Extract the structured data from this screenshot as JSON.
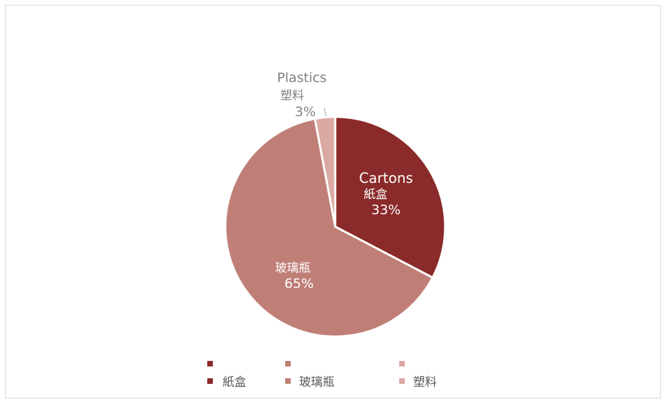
{
  "chart_data": {
    "type": "pie",
    "title": "",
    "slices": [
      {
        "label_en": "Cartons",
        "label_zh": "紙盒",
        "percent_text": "33%",
        "value": 33,
        "color": "#8b2a2a"
      },
      {
        "label_en": "",
        "label_zh": "玻璃瓶",
        "percent_text": "65%",
        "value": 65,
        "color": "#bf7f77"
      },
      {
        "label_en": "Plastics",
        "label_zh": "塑料",
        "percent_text": "3%",
        "value": 3,
        "color": "#dba9a3"
      }
    ],
    "legend": {
      "placement": "bottom",
      "rows": [
        {
          "items": [
            "",
            "",
            ""
          ]
        },
        {
          "items": [
            "紙盒",
            "玻璃瓶",
            "塑料"
          ]
        }
      ]
    },
    "label_colors": {
      "inside": "#ffffff",
      "outside": "#7f7f7f"
    }
  }
}
